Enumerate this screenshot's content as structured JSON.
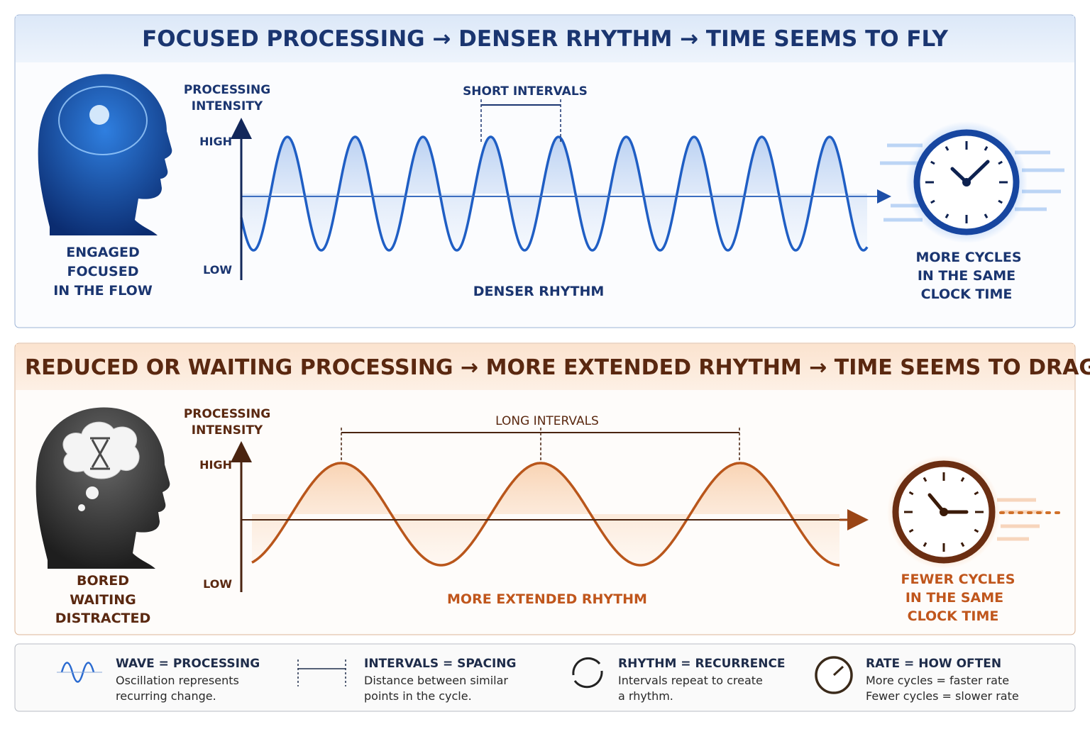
{
  "panels": [
    {
      "title": "FOCUSED PROCESSING → DENSER RHYTHM → TIME SEEMS TO FLY",
      "axis_label": [
        "PROCESSING",
        "INTENSITY"
      ],
      "high": "HIGH",
      "low": "LOW",
      "interval_label": "SHORT INTERVALS",
      "rhythm_label": "DENSER RHYTHM",
      "state_lines": [
        "ENGAGED",
        "FOCUSED",
        "IN THE FLOW"
      ],
      "clock_lines": [
        "MORE CYCLES",
        "IN THE SAME",
        "CLOCK TIME"
      ]
    },
    {
      "title": "REDUCED OR WAITING PROCESSING → MORE EXTENDED RHYTHM → TIME SEEMS TO DRAG",
      "axis_label": [
        "PROCESSING",
        "INTENSITY"
      ],
      "high": "HIGH",
      "low": "LOW",
      "interval_label": "LONG INTERVALS",
      "rhythm_label": "MORE EXTENDED RHYTHM",
      "state_lines": [
        "BORED",
        "WAITING",
        "DISTRACTED"
      ],
      "clock_lines": [
        "FEWER CYCLES",
        "IN THE SAME",
        "CLOCK TIME"
      ]
    }
  ],
  "legend": [
    {
      "title": "WAVE = PROCESSING",
      "lines": [
        "Oscillation represents",
        "recurring change."
      ]
    },
    {
      "title": "INTERVALS = SPACING",
      "lines": [
        "Distance between similar",
        "points in the cycle."
      ]
    },
    {
      "title": "RHYTHM = RECURRENCE",
      "lines": [
        "Intervals repeat to create",
        "a rhythm."
      ]
    },
    {
      "title": "RATE = HOW OFTEN",
      "lines": [
        "More cycles = faster rate",
        "Fewer cycles = slower rate"
      ]
    }
  ]
}
